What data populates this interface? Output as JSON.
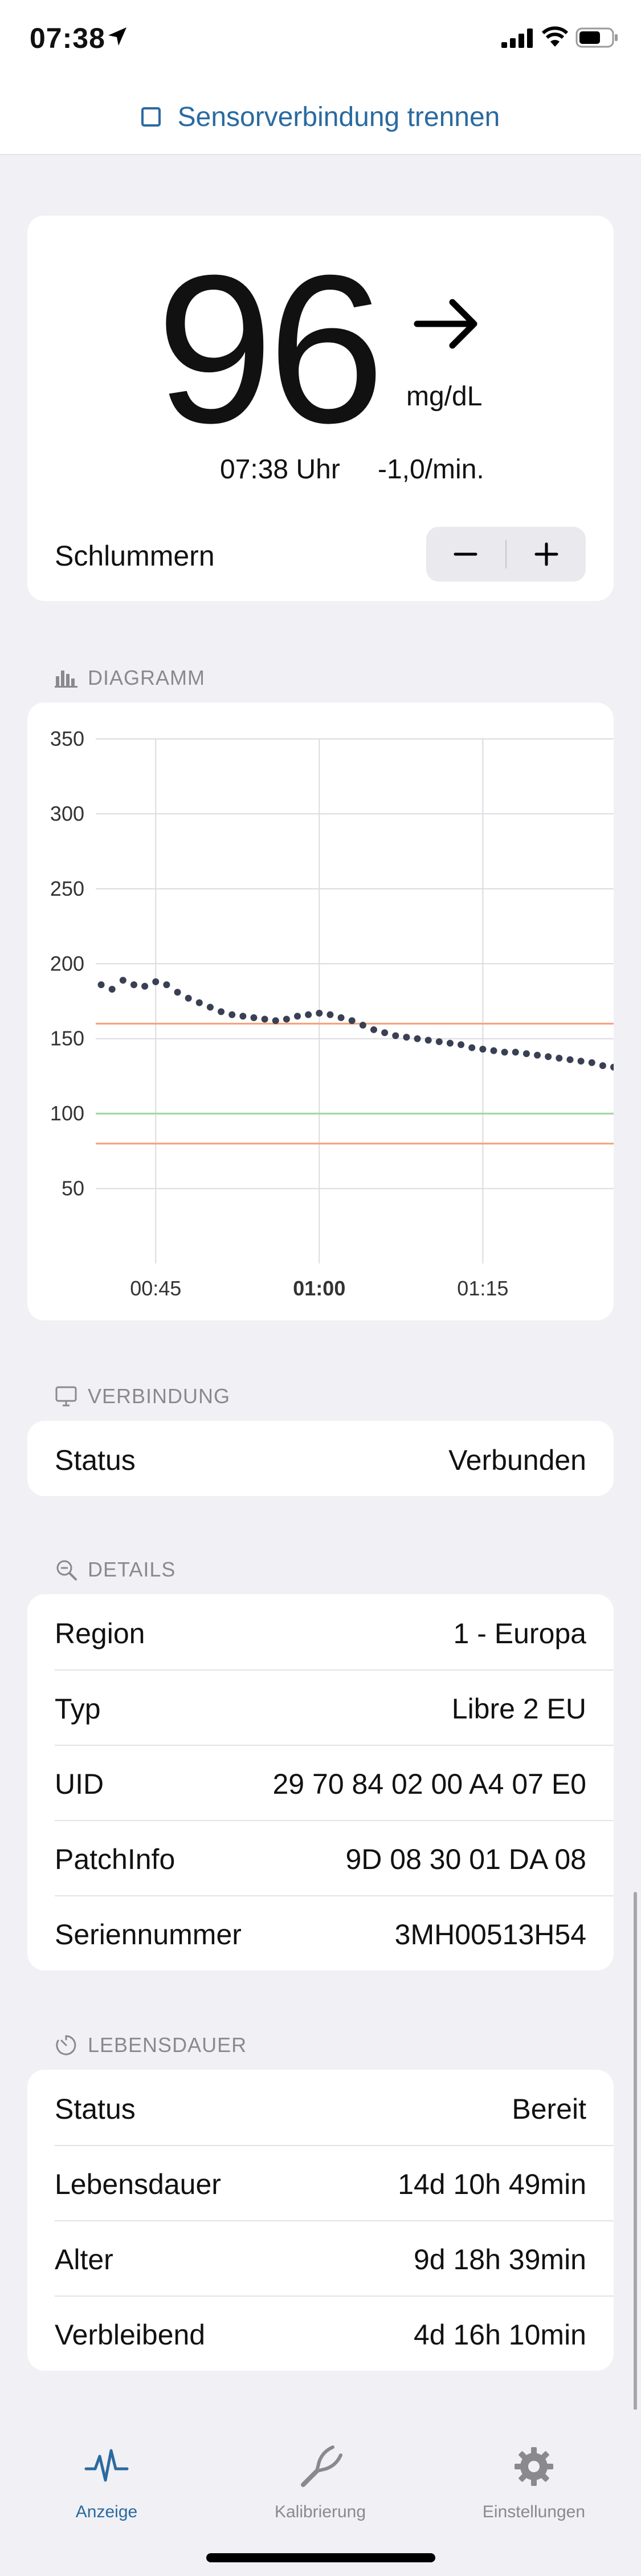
{
  "status_bar": {
    "time": "07:38"
  },
  "top_action": {
    "label": "Sensorverbindung trennen"
  },
  "glucose": {
    "value": "96",
    "unit": "mg/dL",
    "time": "07:38 Uhr",
    "rate": "-1,0/min.",
    "snooze_label": "Schlummern",
    "trend": "right-arrow-icon"
  },
  "chart_section": {
    "title": "DIAGRAMM"
  },
  "chart_data": {
    "type": "scatter",
    "y_ticks": [
      "350",
      "300",
      "250",
      "200",
      "150",
      "100",
      "50"
    ],
    "x_ticks": [
      "00:45",
      "01:00",
      "01:15"
    ],
    "ylim": [
      0,
      350
    ],
    "x_range_minutes": [
      39.5,
      87
    ],
    "grid": true,
    "thresholds": [
      {
        "value": 160,
        "color": "#f5a07a"
      },
      {
        "value": 100,
        "color": "#9ad89a"
      },
      {
        "value": 80,
        "color": "#f5a07a"
      }
    ],
    "points_color": "#394053",
    "points": [
      [
        40.0,
        186
      ],
      [
        41.0,
        183
      ],
      [
        42.0,
        189
      ],
      [
        43.0,
        186
      ],
      [
        44.0,
        185
      ],
      [
        45.0,
        188
      ],
      [
        46.0,
        186
      ],
      [
        47.0,
        181
      ],
      [
        48.0,
        177
      ],
      [
        49.0,
        174
      ],
      [
        50.0,
        171
      ],
      [
        51.0,
        168
      ],
      [
        52.0,
        166
      ],
      [
        53.0,
        165
      ],
      [
        54.0,
        164
      ],
      [
        55.0,
        163
      ],
      [
        56.0,
        162
      ],
      [
        57.0,
        163
      ],
      [
        58.0,
        165
      ],
      [
        59.0,
        166
      ],
      [
        60.0,
        167
      ],
      [
        61.0,
        166
      ],
      [
        62.0,
        164
      ],
      [
        63.0,
        162
      ],
      [
        64.0,
        159
      ],
      [
        65.0,
        156
      ],
      [
        66.0,
        154
      ],
      [
        67.0,
        152
      ],
      [
        68.0,
        151
      ],
      [
        69.0,
        150
      ],
      [
        70.0,
        149
      ],
      [
        71.0,
        148
      ],
      [
        72.0,
        147
      ],
      [
        73.0,
        146
      ],
      [
        74.0,
        144
      ],
      [
        75.0,
        143
      ],
      [
        76.0,
        142
      ],
      [
        77.0,
        141
      ],
      [
        78.0,
        141
      ],
      [
        79.0,
        140
      ],
      [
        80.0,
        139
      ],
      [
        81.0,
        138
      ],
      [
        82.0,
        137
      ],
      [
        83.0,
        136
      ],
      [
        84.0,
        135
      ],
      [
        85.0,
        134
      ],
      [
        86.0,
        132
      ],
      [
        87.0,
        131
      ]
    ]
  },
  "connection_section": {
    "title": "VERBINDUNG",
    "rows": [
      {
        "label": "Status",
        "value": "Verbunden"
      }
    ]
  },
  "details_section": {
    "title": "DETAILS",
    "rows": [
      {
        "label": "Region",
        "value": "1 - Europa"
      },
      {
        "label": "Typ",
        "value": "Libre 2 EU"
      },
      {
        "label": "UID",
        "value": "29 70 84 02 00 A4 07 E0"
      },
      {
        "label": "PatchInfo",
        "value": "9D 08 30 01 DA 08"
      },
      {
        "label": "Seriennummer",
        "value": "3MH00513H54"
      }
    ]
  },
  "lifetime_section": {
    "title": "LEBENSDAUER",
    "rows": [
      {
        "label": "Status",
        "value": "Bereit"
      },
      {
        "label": "Lebensdauer",
        "value": "14d 10h 49min"
      },
      {
        "label": "Alter",
        "value": "9d 18h 39min"
      },
      {
        "label": "Verbleibend",
        "value": "4d 16h 10min"
      }
    ]
  },
  "tabbar": {
    "tabs": [
      {
        "label": "Anzeige",
        "icon": "waveform-icon",
        "active": true
      },
      {
        "label": "Kalibrierung",
        "icon": "tuning-fork-icon",
        "active": false
      },
      {
        "label": "Einstellungen",
        "icon": "gear-icon",
        "active": false
      }
    ],
    "active_color": "#2a6aa0",
    "inactive_color": "#8a8a8e"
  }
}
